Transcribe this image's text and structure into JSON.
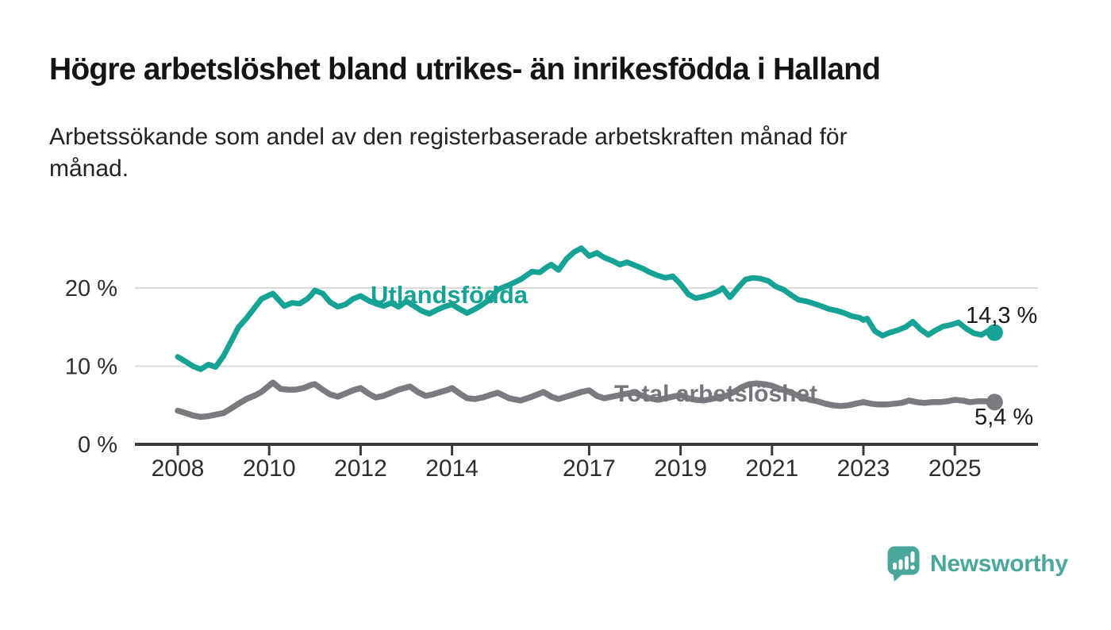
{
  "header": {
    "title": "Högre arbetslöshet bland utrikes- än inrikesfödda i Halland",
    "subtitle": "Arbetssökande som andel av den registerbaserade arbetskraften månad för månad.",
    "subtitle_lines": [
      "Arbetssökande som andel av den registerbaserade arbetskraften månad för",
      "månad."
    ]
  },
  "branding": {
    "logo_text": "Newsworthy",
    "logo_color": "#4aa79c",
    "logo_icon": "newsworthy-speech-bubble-bar-chart-icon"
  },
  "chart_data": {
    "type": "line",
    "unit": "%",
    "grid": "horizontal-only",
    "legend_position": "inline-labels-on-lines",
    "x_axis": {
      "tick_years": [
        2008,
        2010,
        2012,
        2014,
        2017,
        2019,
        2021,
        2023,
        2025
      ],
      "tick_labels": [
        "2008",
        "2010",
        "2012",
        "2014",
        "2017",
        "2019",
        "2021",
        "2023",
        "2025"
      ],
      "range_years": [
        2008.0,
        2025.87
      ]
    },
    "y_axis": {
      "ticks": [
        0,
        10,
        20
      ],
      "tick_labels": [
        "0 %",
        "10 %",
        "20 %"
      ],
      "gridline_values": [
        10,
        20
      ],
      "range": [
        0,
        26
      ]
    },
    "series": [
      {
        "name": "Utlandsfödda",
        "color": "#16a294",
        "end_label": "14,3 %",
        "end_value": 14.3,
        "points": [
          [
            2008.0,
            11.2
          ],
          [
            2008.17,
            10.6
          ],
          [
            2008.33,
            10.0
          ],
          [
            2008.5,
            9.6
          ],
          [
            2008.67,
            10.2
          ],
          [
            2008.83,
            9.9
          ],
          [
            2009.0,
            11.3
          ],
          [
            2009.17,
            13.2
          ],
          [
            2009.33,
            15.0
          ],
          [
            2009.5,
            16.1
          ],
          [
            2009.67,
            17.4
          ],
          [
            2009.83,
            18.6
          ],
          [
            2010.08,
            19.3
          ],
          [
            2010.33,
            17.7
          ],
          [
            2010.5,
            18.1
          ],
          [
            2010.67,
            18.0
          ],
          [
            2010.83,
            18.6
          ],
          [
            2010.92,
            19.1
          ],
          [
            2011.0,
            19.7
          ],
          [
            2011.17,
            19.3
          ],
          [
            2011.33,
            18.2
          ],
          [
            2011.5,
            17.6
          ],
          [
            2011.67,
            17.9
          ],
          [
            2011.83,
            18.6
          ],
          [
            2012.0,
            19.0
          ],
          [
            2012.17,
            18.4
          ],
          [
            2012.33,
            18.0
          ],
          [
            2012.5,
            17.7
          ],
          [
            2012.67,
            18.1
          ],
          [
            2012.83,
            17.6
          ],
          [
            2013.0,
            18.3
          ],
          [
            2013.17,
            17.7
          ],
          [
            2013.33,
            17.1
          ],
          [
            2013.5,
            16.7
          ],
          [
            2013.67,
            17.2
          ],
          [
            2013.83,
            17.6
          ],
          [
            2014.0,
            17.9
          ],
          [
            2014.17,
            17.3
          ],
          [
            2014.33,
            16.8
          ],
          [
            2014.5,
            17.3
          ],
          [
            2014.67,
            17.9
          ],
          [
            2014.83,
            18.6
          ],
          [
            2015.0,
            19.8
          ],
          [
            2015.25,
            20.4
          ],
          [
            2015.5,
            21.1
          ],
          [
            2015.75,
            22.1
          ],
          [
            2015.92,
            22.0
          ],
          [
            2016.08,
            22.7
          ],
          [
            2016.17,
            23.0
          ],
          [
            2016.33,
            22.3
          ],
          [
            2016.5,
            23.7
          ],
          [
            2016.67,
            24.6
          ],
          [
            2016.83,
            25.1
          ],
          [
            2017.0,
            24.1
          ],
          [
            2017.17,
            24.5
          ],
          [
            2017.33,
            23.9
          ],
          [
            2017.5,
            23.5
          ],
          [
            2017.67,
            23.0
          ],
          [
            2017.83,
            23.3
          ],
          [
            2018.0,
            22.9
          ],
          [
            2018.17,
            22.5
          ],
          [
            2018.33,
            22.0
          ],
          [
            2018.5,
            21.6
          ],
          [
            2018.67,
            21.3
          ],
          [
            2018.83,
            21.5
          ],
          [
            2019.0,
            20.5
          ],
          [
            2019.17,
            19.2
          ],
          [
            2019.33,
            18.7
          ],
          [
            2019.5,
            18.9
          ],
          [
            2019.67,
            19.2
          ],
          [
            2019.83,
            19.6
          ],
          [
            2019.92,
            20.0
          ],
          [
            2020.08,
            18.8
          ],
          [
            2020.25,
            20.0
          ],
          [
            2020.42,
            21.1
          ],
          [
            2020.58,
            21.3
          ],
          [
            2020.75,
            21.2
          ],
          [
            2020.92,
            20.9
          ],
          [
            2021.08,
            20.2
          ],
          [
            2021.25,
            19.8
          ],
          [
            2021.42,
            19.1
          ],
          [
            2021.58,
            18.5
          ],
          [
            2021.75,
            18.3
          ],
          [
            2021.92,
            18.0
          ],
          [
            2022.08,
            17.7
          ],
          [
            2022.25,
            17.3
          ],
          [
            2022.42,
            17.1
          ],
          [
            2022.58,
            16.8
          ],
          [
            2022.75,
            16.4
          ],
          [
            2022.92,
            16.2
          ],
          [
            2023.0,
            15.9
          ],
          [
            2023.08,
            16.1
          ],
          [
            2023.25,
            14.5
          ],
          [
            2023.42,
            13.9
          ],
          [
            2023.58,
            14.3
          ],
          [
            2023.75,
            14.6
          ],
          [
            2023.92,
            15.0
          ],
          [
            2024.08,
            15.7
          ],
          [
            2024.25,
            14.7
          ],
          [
            2024.42,
            14.0
          ],
          [
            2024.58,
            14.6
          ],
          [
            2024.75,
            15.1
          ],
          [
            2024.92,
            15.3
          ],
          [
            2025.08,
            15.6
          ],
          [
            2025.25,
            14.8
          ],
          [
            2025.42,
            14.2
          ],
          [
            2025.58,
            14.0
          ],
          [
            2025.75,
            14.6
          ],
          [
            2025.87,
            14.3
          ]
        ]
      },
      {
        "name": "Total arbetslöshet",
        "color": "#7b7a80",
        "end_label": "5,4 %",
        "end_value": 5.4,
        "points": [
          [
            2008.0,
            4.3
          ],
          [
            2008.17,
            4.0
          ],
          [
            2008.33,
            3.7
          ],
          [
            2008.5,
            3.5
          ],
          [
            2008.67,
            3.6
          ],
          [
            2008.83,
            3.8
          ],
          [
            2009.0,
            4.0
          ],
          [
            2009.17,
            4.6
          ],
          [
            2009.33,
            5.2
          ],
          [
            2009.5,
            5.8
          ],
          [
            2009.67,
            6.2
          ],
          [
            2009.83,
            6.7
          ],
          [
            2010.08,
            7.9
          ],
          [
            2010.25,
            7.1
          ],
          [
            2010.42,
            7.0
          ],
          [
            2010.58,
            7.0
          ],
          [
            2010.75,
            7.2
          ],
          [
            2010.92,
            7.6
          ],
          [
            2011.0,
            7.7
          ],
          [
            2011.17,
            7.0
          ],
          [
            2011.33,
            6.4
          ],
          [
            2011.5,
            6.1
          ],
          [
            2011.67,
            6.5
          ],
          [
            2011.83,
            6.9
          ],
          [
            2012.0,
            7.2
          ],
          [
            2012.17,
            6.5
          ],
          [
            2012.33,
            6.0
          ],
          [
            2012.5,
            6.2
          ],
          [
            2012.67,
            6.6
          ],
          [
            2012.83,
            7.0
          ],
          [
            2013.08,
            7.4
          ],
          [
            2013.25,
            6.7
          ],
          [
            2013.42,
            6.2
          ],
          [
            2013.58,
            6.4
          ],
          [
            2013.75,
            6.7
          ],
          [
            2013.92,
            7.0
          ],
          [
            2014.0,
            7.2
          ],
          [
            2014.17,
            6.5
          ],
          [
            2014.33,
            5.9
          ],
          [
            2014.5,
            5.8
          ],
          [
            2014.67,
            6.0
          ],
          [
            2014.83,
            6.3
          ],
          [
            2015.0,
            6.6
          ],
          [
            2015.25,
            5.9
          ],
          [
            2015.5,
            5.6
          ],
          [
            2015.75,
            6.1
          ],
          [
            2015.92,
            6.5
          ],
          [
            2016.0,
            6.7
          ],
          [
            2016.17,
            6.1
          ],
          [
            2016.33,
            5.8
          ],
          [
            2016.5,
            6.1
          ],
          [
            2016.67,
            6.4
          ],
          [
            2016.83,
            6.7
          ],
          [
            2017.0,
            6.9
          ],
          [
            2017.17,
            6.2
          ],
          [
            2017.33,
            5.9
          ],
          [
            2017.5,
            6.1
          ],
          [
            2017.67,
            6.3
          ],
          [
            2017.83,
            6.5
          ],
          [
            2018.0,
            6.6
          ],
          [
            2018.17,
            6.2
          ],
          [
            2018.33,
            5.9
          ],
          [
            2018.5,
            5.7
          ],
          [
            2018.67,
            5.9
          ],
          [
            2018.83,
            6.1
          ],
          [
            2019.0,
            6.3
          ],
          [
            2019.17,
            5.9
          ],
          [
            2019.33,
            5.7
          ],
          [
            2019.5,
            5.6
          ],
          [
            2019.67,
            5.8
          ],
          [
            2019.83,
            6.0
          ],
          [
            2020.0,
            6.2
          ],
          [
            2020.17,
            6.7
          ],
          [
            2020.33,
            7.3
          ],
          [
            2020.5,
            7.7
          ],
          [
            2020.67,
            7.8
          ],
          [
            2020.83,
            7.7
          ],
          [
            2021.0,
            7.5
          ],
          [
            2021.17,
            7.1
          ],
          [
            2021.33,
            6.8
          ],
          [
            2021.5,
            6.4
          ],
          [
            2021.67,
            6.0
          ],
          [
            2021.83,
            5.7
          ],
          [
            2022.0,
            5.5
          ],
          [
            2022.17,
            5.2
          ],
          [
            2022.33,
            5.0
          ],
          [
            2022.5,
            4.9
          ],
          [
            2022.67,
            5.0
          ],
          [
            2022.83,
            5.2
          ],
          [
            2023.0,
            5.4
          ],
          [
            2023.17,
            5.2
          ],
          [
            2023.33,
            5.1
          ],
          [
            2023.5,
            5.1
          ],
          [
            2023.67,
            5.2
          ],
          [
            2023.83,
            5.3
          ],
          [
            2024.0,
            5.6
          ],
          [
            2024.17,
            5.4
          ],
          [
            2024.33,
            5.3
          ],
          [
            2024.5,
            5.4
          ],
          [
            2024.67,
            5.4
          ],
          [
            2024.83,
            5.5
          ],
          [
            2025.0,
            5.7
          ],
          [
            2025.17,
            5.6
          ],
          [
            2025.33,
            5.4
          ],
          [
            2025.5,
            5.5
          ],
          [
            2025.67,
            5.5
          ],
          [
            2025.87,
            5.4
          ]
        ]
      }
    ]
  }
}
